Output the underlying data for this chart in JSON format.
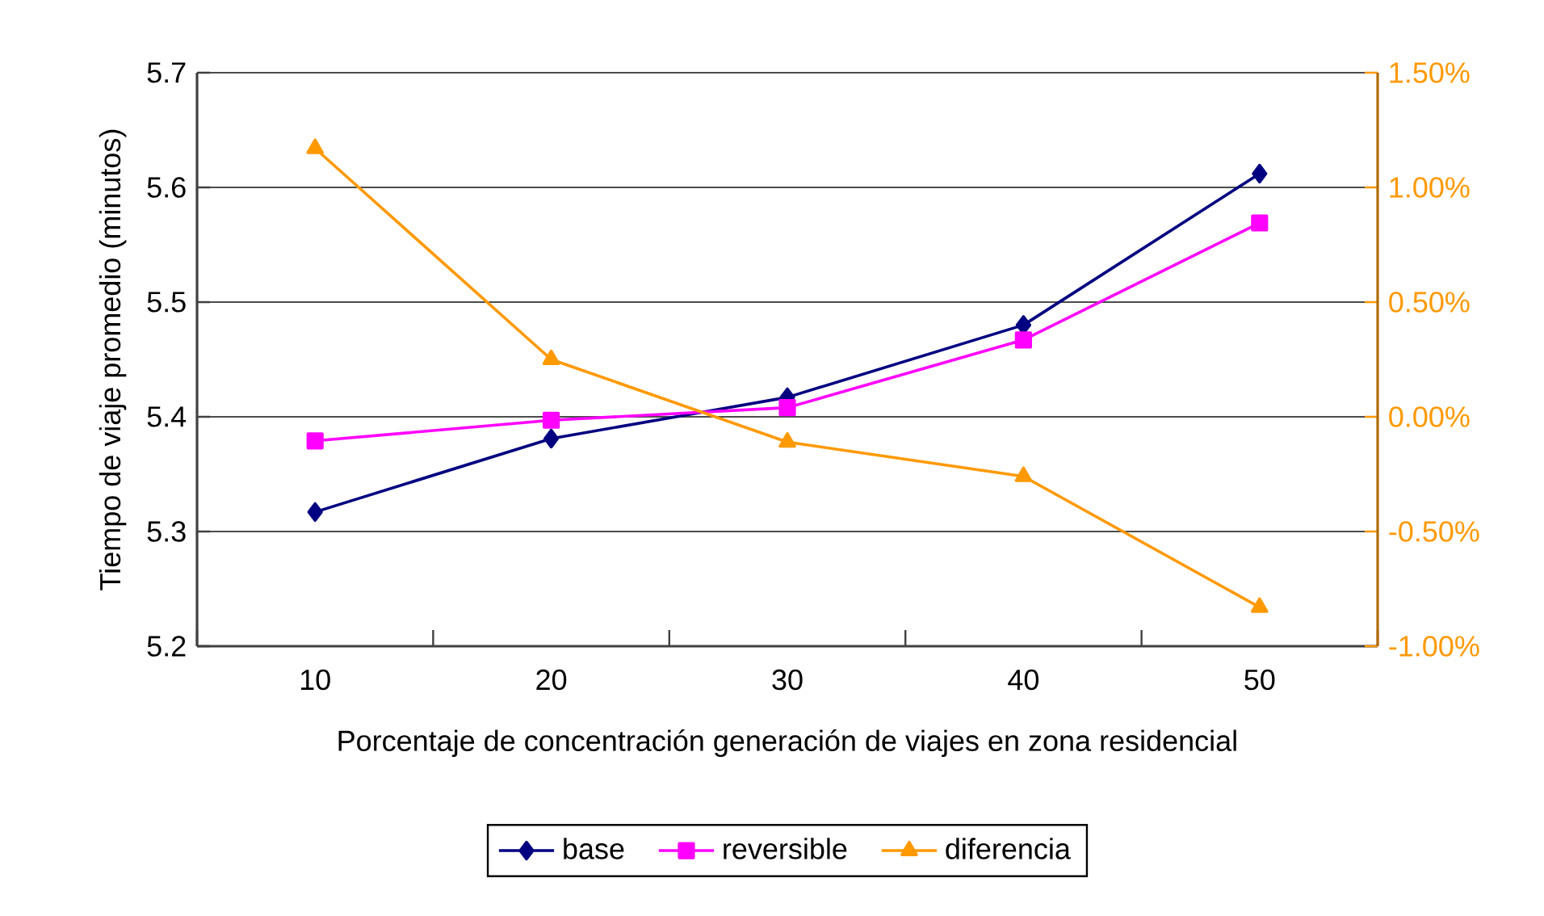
{
  "chart_data": {
    "type": "line",
    "xlabel": "Porcentaje de concentración generación de viajes en zona residencial",
    "ylabel": "Tiempo de viaje promedio (minutos)",
    "categories": [
      "10",
      "20",
      "30",
      "40",
      "50"
    ],
    "ylim": [
      5.2,
      5.7
    ],
    "yticks": [
      5.2,
      5.3,
      5.4,
      5.5,
      5.6,
      5.7
    ],
    "y2lim": [
      -1.0,
      1.5
    ],
    "y2ticks": [
      {
        "value": -1.0,
        "label": "-1.00%"
      },
      {
        "value": -0.5,
        "label": "-0.50%"
      },
      {
        "value": 0.0,
        "label": "0.00%"
      },
      {
        "value": 0.5,
        "label": "0.50%"
      },
      {
        "value": 1.0,
        "label": "1.00%"
      },
      {
        "value": 1.5,
        "label": "1.50%"
      }
    ],
    "grid": "y",
    "legend": "bottom",
    "line_style": "solid",
    "series": [
      {
        "name": "base",
        "color": "#000080",
        "marker": "diamond",
        "values": [
          5.317,
          5.381,
          5.417,
          5.48,
          5.612
        ]
      },
      {
        "name": "reversible",
        "color": "#ff00ff",
        "marker": "square",
        "values": [
          5.379,
          5.397,
          5.408,
          5.467,
          5.569
        ]
      },
      {
        "name": "diferencia",
        "color": "#ff9900",
        "marker": "triangle",
        "axis": "y2",
        "values": [
          1.17,
          0.25,
          -0.11,
          -0.26,
          -0.83
        ]
      }
    ]
  }
}
